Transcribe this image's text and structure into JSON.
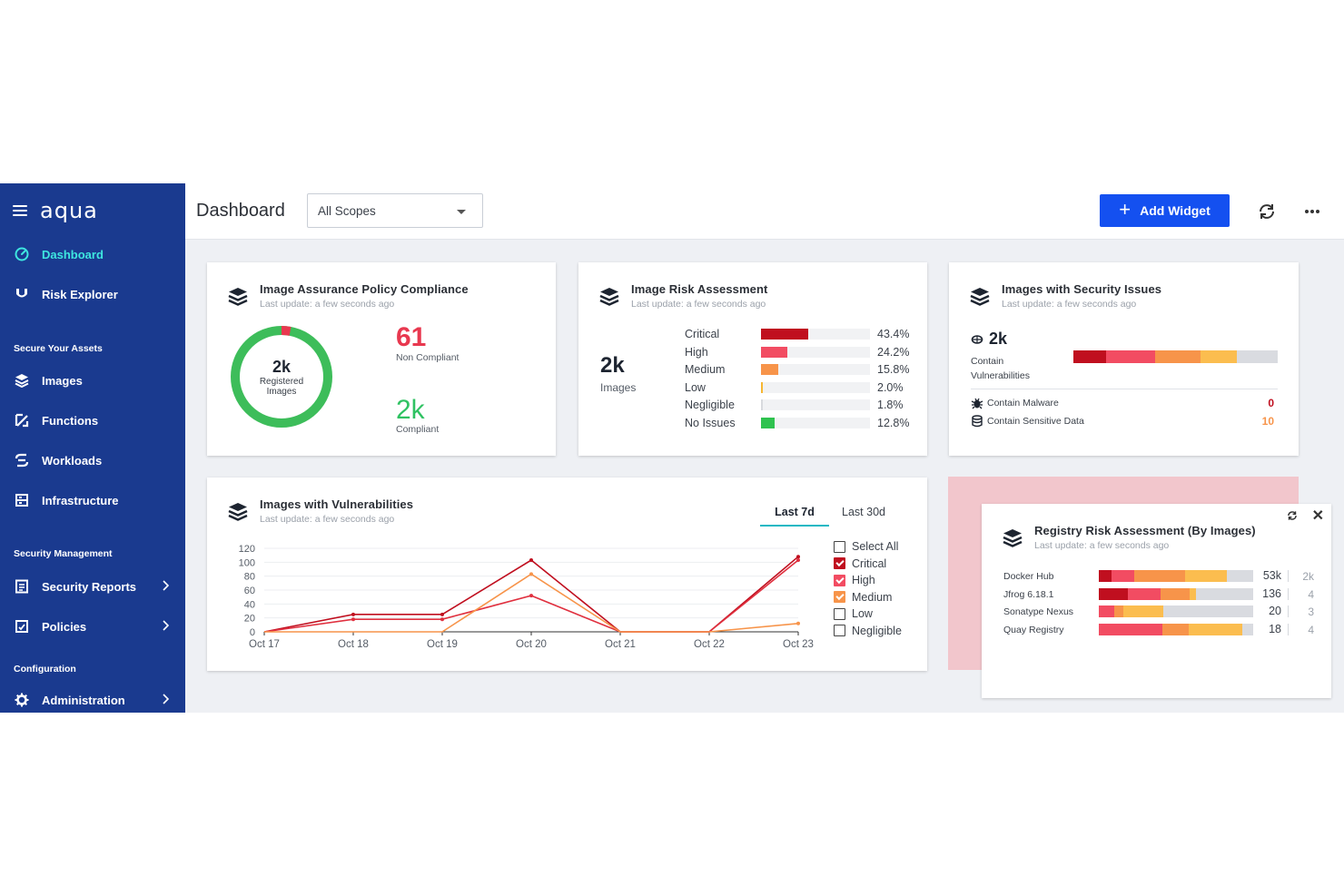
{
  "brand": {
    "name": "aqua"
  },
  "sidebar": {
    "items": [
      {
        "label": "Dashboard",
        "icon": "dashboard-gauge-icon"
      },
      {
        "label": "Risk Explorer",
        "icon": "risk-explorer-icon"
      }
    ],
    "sections": [
      {
        "title": "Secure Your Assets",
        "items": [
          {
            "label": "Images",
            "icon": "images-stack-icon"
          },
          {
            "label": "Functions",
            "icon": "functions-icon"
          },
          {
            "label": "Workloads",
            "icon": "workloads-icon"
          },
          {
            "label": "Infrastructure",
            "icon": "infrastructure-icon"
          }
        ]
      },
      {
        "title": "Security Management",
        "items": [
          {
            "label": "Security Reports",
            "icon": "reports-icon"
          },
          {
            "label": "Policies",
            "icon": "policies-icon"
          }
        ]
      },
      {
        "title": "Configuration",
        "items": [
          {
            "label": "Administration",
            "icon": "gear-icon"
          }
        ]
      }
    ]
  },
  "header": {
    "title": "Dashboard",
    "scope": "All Scopes",
    "add_widget": "Add Widget"
  },
  "compliance": {
    "title": "Image Assurance Policy Compliance",
    "subtitle": "Last update: a few seconds ago",
    "total": "2k",
    "total_label": "Registered Images",
    "non_compliant": "61",
    "non_compliant_label": "Non Compliant",
    "compliant": "2k",
    "compliant_label": "Compliant",
    "non_compliant_fraction": 0.03,
    "colors": {
      "compliant": "#3dbd5a",
      "non_compliant": "#e8384f"
    }
  },
  "risk": {
    "title": "Image Risk Assessment",
    "subtitle": "Last update: a few seconds ago",
    "total": "2k",
    "total_label": "Images",
    "rows": [
      {
        "label": "Critical",
        "pct": "43.4%",
        "value": 43.4,
        "color": "#c00f1f"
      },
      {
        "label": "High",
        "pct": "24.2%",
        "value": 24.2,
        "color": "#f24c62"
      },
      {
        "label": "Medium",
        "pct": "15.8%",
        "value": 15.8,
        "color": "#f7944a"
      },
      {
        "label": "Low",
        "pct": "2.0%",
        "value": 2.0,
        "color": "#f7b733"
      },
      {
        "label": "Negligible",
        "pct": "1.8%",
        "value": 1.8,
        "color": "#d8dade"
      },
      {
        "label": "No Issues",
        "pct": "12.8%",
        "value": 12.8,
        "color": "#2fc24f"
      }
    ]
  },
  "security_issues": {
    "title": "Images with Security Issues",
    "subtitle": "Last update: a few seconds ago",
    "vuln_count": "2k",
    "vuln_label": "Contain Vulnerabilities",
    "bar_segments": [
      {
        "value": 16,
        "color": "#c00f1f"
      },
      {
        "value": 24,
        "color": "#f24c62"
      },
      {
        "value": 22,
        "color": "#f7944a"
      },
      {
        "value": 18,
        "color": "#fbbd4f"
      },
      {
        "value": 20,
        "color": "#d9dbe0"
      }
    ],
    "malware_label": "Contain Malware",
    "malware_value": "0",
    "malware_color": "#c00f1f",
    "sensitive_label": "Contain Sensitive Data",
    "sensitive_value": "10",
    "sensitive_color": "#f7944a"
  },
  "vulnerabilities": {
    "title": "Images with Vulnerabilities",
    "subtitle": "Last update: a few seconds ago",
    "tabs": [
      "Last 7d",
      "Last 30d"
    ],
    "legend": [
      {
        "label": "Select All",
        "checked": false,
        "color": "#444444"
      },
      {
        "label": "Critical",
        "checked": true,
        "color": "#c00f1f"
      },
      {
        "label": "High",
        "checked": true,
        "color": "#f24c62"
      },
      {
        "label": "Medium",
        "checked": true,
        "color": "#f7944a"
      },
      {
        "label": "Low",
        "checked": false,
        "color": "#444444"
      },
      {
        "label": "Negligible",
        "checked": false,
        "color": "#444444"
      }
    ]
  },
  "chart_data": {
    "type": "line",
    "x": [
      "Oct 17",
      "Oct 18",
      "Oct 19",
      "Oct 20",
      "Oct 21",
      "Oct 22",
      "Oct 23"
    ],
    "ylim": [
      0,
      120
    ],
    "yticks": [
      0,
      20,
      40,
      60,
      80,
      100,
      120
    ],
    "series": [
      {
        "name": "Critical",
        "color": "#c00f1f",
        "values": [
          0,
          25,
          25,
          103,
          0,
          0,
          108
        ]
      },
      {
        "name": "High",
        "color": "#e0303f",
        "values": [
          0,
          18,
          18,
          52,
          0,
          0,
          103
        ]
      },
      {
        "name": "Medium",
        "color": "#f7944a",
        "values": [
          0,
          0,
          0,
          83,
          0,
          0,
          12
        ]
      }
    ],
    "grid": true
  },
  "registry": {
    "title": "Registry Risk Assessment (By Images)",
    "subtitle": "Last update: a few seconds ago",
    "rows": [
      {
        "name": "Docker Hub",
        "count": "53k",
        "secondary": "2k",
        "segments": [
          {
            "value": 8,
            "color": "#c00f1f"
          },
          {
            "value": 15,
            "color": "#f24c62"
          },
          {
            "value": 33,
            "color": "#f7944a"
          },
          {
            "value": 27,
            "color": "#fbbd4f"
          },
          {
            "value": 17,
            "color": "#d9dbe0"
          }
        ]
      },
      {
        "name": "Jfrog 6.18.1",
        "count": "136",
        "secondary": "4",
        "segments": [
          {
            "value": 19,
            "color": "#c00f1f"
          },
          {
            "value": 21,
            "color": "#f24c62"
          },
          {
            "value": 19,
            "color": "#f7944a"
          },
          {
            "value": 4,
            "color": "#fbbd4f"
          },
          {
            "value": 37,
            "color": "#d9dbe0"
          }
        ]
      },
      {
        "name": "Sonatype Nexus",
        "count": "20",
        "secondary": "3",
        "segments": [
          {
            "value": 10,
            "color": "#f24c62"
          },
          {
            "value": 6,
            "color": "#f7944a"
          },
          {
            "value": 26,
            "color": "#fbbd4f"
          },
          {
            "value": 58,
            "color": "#d9dbe0"
          }
        ]
      },
      {
        "name": "Quay Registry",
        "count": "18",
        "secondary": "4",
        "segments": [
          {
            "value": 41,
            "color": "#f24c62"
          },
          {
            "value": 17,
            "color": "#f7944a"
          },
          {
            "value": 35,
            "color": "#fbbd4f"
          },
          {
            "value": 7,
            "color": "#d9dbe0"
          }
        ]
      }
    ]
  }
}
